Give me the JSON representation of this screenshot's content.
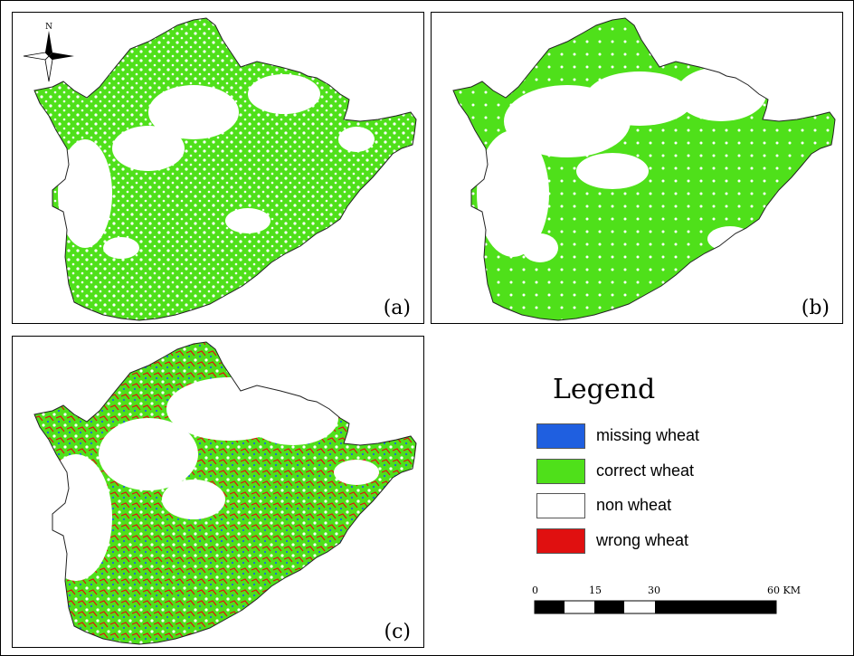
{
  "panels": [
    {
      "label": "(a)"
    },
    {
      "label": "(b)"
    },
    {
      "label": "(c)"
    }
  ],
  "north_arrow": {
    "label": "N",
    "icon": "north-arrow-icon"
  },
  "legend": {
    "title": "Legend",
    "items": [
      {
        "label": "missing wheat",
        "color": "#1f5fe0"
      },
      {
        "label": "correct wheat",
        "color": "#4fe01a"
      },
      {
        "label": "non wheat",
        "color": "#ffffff"
      },
      {
        "label": "wrong wheat",
        "color": "#e01010"
      }
    ]
  },
  "scale_bar": {
    "ticks": [
      "0",
      "15",
      "30",
      "60 KM"
    ]
  }
}
